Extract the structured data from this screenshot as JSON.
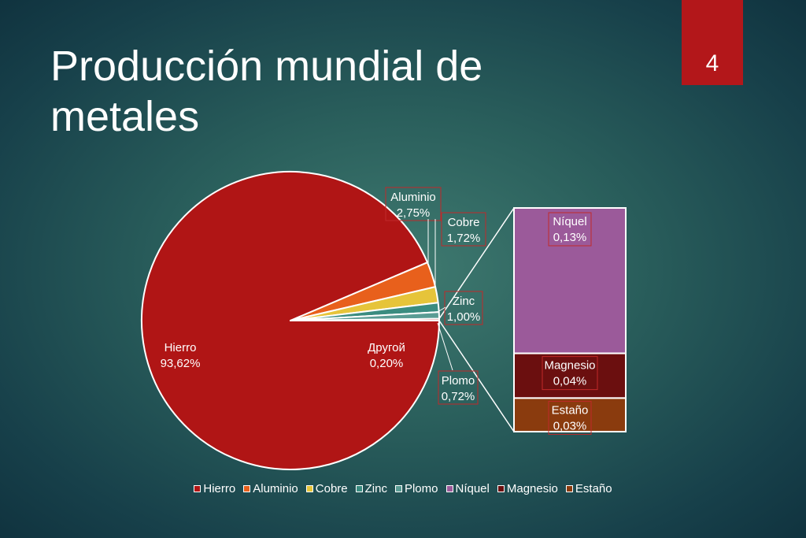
{
  "slide": {
    "title_line1": "Producción mundial de",
    "title_line2": "metales",
    "number": "4"
  },
  "chart_data": {
    "type": "pie",
    "variant": "pie-of-bar",
    "title": "",
    "pie_slices": [
      {
        "name": "Hierro",
        "value": 93.62,
        "label": "93,62%",
        "color": "#b01515"
      },
      {
        "name": "Aluminio",
        "value": 2.75,
        "label": "2,75%",
        "color": "#e8601c"
      },
      {
        "name": "Cobre",
        "value": 1.72,
        "label": "1,72%",
        "color": "#e6c43a"
      },
      {
        "name": "Zinc",
        "value": 1.0,
        "label": "1,00%",
        "color": "#3a8c80"
      },
      {
        "name": "Plomo",
        "value": 0.72,
        "label": "0,72%",
        "color": "#5a9c94"
      },
      {
        "name": "Другой",
        "value": 0.2,
        "label": "0,20%",
        "color": "#b01515"
      }
    ],
    "bar_segments": [
      {
        "name": "Níquel",
        "value": 0.13,
        "label": "0,13%",
        "color": "#9b5a9a"
      },
      {
        "name": "Magnesio",
        "value": 0.04,
        "label": "0,04%",
        "color": "#6b0f0f"
      },
      {
        "name": "Estaño",
        "value": 0.03,
        "label": "0,03%",
        "color": "#8a3b0e"
      }
    ],
    "legend": [
      {
        "name": "Hierro",
        "color": "#b01515"
      },
      {
        "name": "Aluminio",
        "color": "#e8601c"
      },
      {
        "name": "Cobre",
        "color": "#e6c43a"
      },
      {
        "name": "Zinc",
        "color": "#3a8c80"
      },
      {
        "name": "Plomo",
        "color": "#5a9c94"
      },
      {
        "name": "Níquel",
        "color": "#9b5a9a"
      },
      {
        "name": "Magnesio",
        "color": "#6b0f0f"
      },
      {
        "name": "Estaño",
        "color": "#8a3b0e"
      }
    ],
    "legend_position": "bottom",
    "grid": false
  }
}
